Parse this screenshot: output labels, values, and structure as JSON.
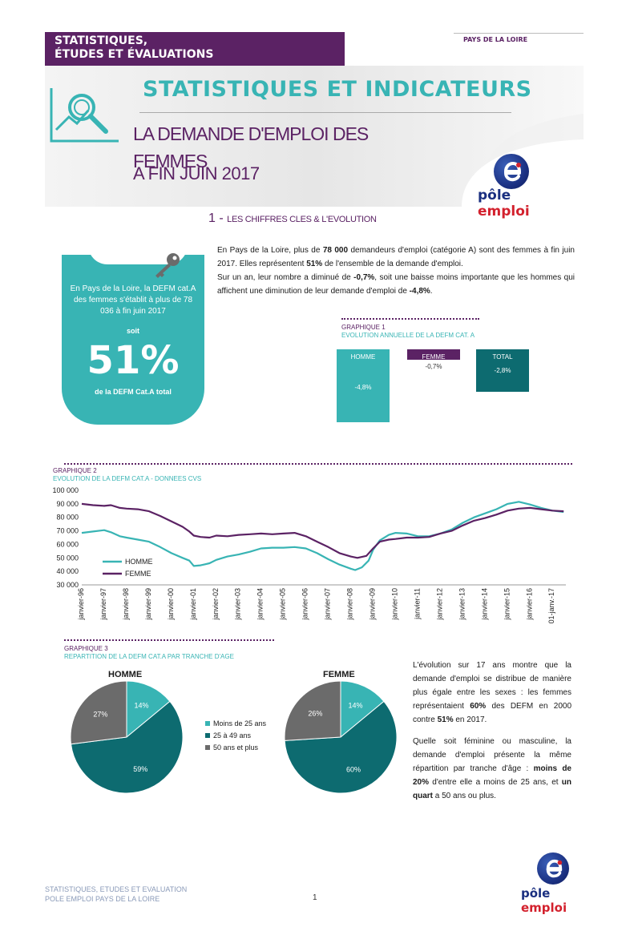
{
  "header": {
    "banner_line1": "STATISTIQUES,",
    "banner_line2": "ÉTUDES ET ÉVALUATIONS",
    "region": "PAYS DE LA LOIRE",
    "section_title": "STATISTIQUES ET INDICATEURS",
    "title_line1": "LA DEMANDE D'EMPLOI DES",
    "title_line2": "FEMMES",
    "subtitle": "A FIN JUIN 2017",
    "logo_part1": "pôle",
    "logo_part2": "emploi"
  },
  "section1": {
    "number": "1 -",
    "title": "LES CHIFFRES CLES & L'EVOLUTION",
    "intro_p1_a": "En Pays de la Loire, plus de ",
    "intro_p1_b": "78 000",
    "intro_p1_c": " demandeurs d'emploi (catégorie A) sont des femmes à fin juin 2017. Elles représentent ",
    "intro_p1_d": "51%",
    "intro_p1_e": " de l'ensemble de la demande d'emploi.",
    "intro_p2_a": "Sur un an, leur nombre a diminué de ",
    "intro_p2_b": "-0,7%",
    "intro_p2_c": ", soit une baisse moins importante que les hommes qui affichent une diminution de leur demande d'emploi de ",
    "intro_p2_d": "-4,8%",
    "intro_p2_e": "."
  },
  "kpi": {
    "text": "En Pays de la Loire, la DEFM cat.A des femmes s'établit à plus de 78 036 à fin juin 2017",
    "soit": "soit",
    "value": "51%",
    "caption": "de la DEFM Cat.A total"
  },
  "graph1": {
    "label": "GRAPHIQUE 1",
    "title": "EVOLUTION ANNUELLE DE LA DEFM CAT. A",
    "bars": [
      {
        "name": "HOMME",
        "value": "-4,8%",
        "color": "#38b4b4"
      },
      {
        "name": "FEMME",
        "value": "-0,7%",
        "color": "#5b2264"
      },
      {
        "name": "TOTAL",
        "value": "-2,8%",
        "color": "#0d6b70"
      }
    ]
  },
  "graph2": {
    "label": "GRAPHIQUE 2",
    "title": "EVOLUTION DE LA DEFM CAT.A - DONNEES CVS"
  },
  "chart_data": [
    {
      "type": "bar",
      "categories": [
        "HOMME",
        "FEMME",
        "TOTAL"
      ],
      "values": [
        -4.8,
        -0.7,
        -2.8
      ]
    },
    {
      "type": "line",
      "ylim": [
        30000,
        100000
      ],
      "yticks": [
        "100 000",
        "90 000",
        "80 000",
        "70 000",
        "60 000",
        "50 000",
        "40 000",
        "30 000"
      ],
      "xticks": [
        "janvier-96",
        "janvier-97",
        "janvier-98",
        "janvier-99",
        "janvier-00",
        "janvier-01",
        "janvier-02",
        "janvier-03",
        "janvier-04",
        "janvier-05",
        "janvier-06",
        "janvier-07",
        "janvier-08",
        "janvier-09",
        "janvier-10",
        "janvier-11",
        "janvier-12",
        "janvier-13",
        "janvier-14",
        "janvier-15",
        "janvier-16",
        "01-janv.-17"
      ],
      "series": [
        {
          "name": "HOMME",
          "color": "#38b4b4",
          "points": [
            [
              1996.0,
              68500
            ],
            [
              1996.5,
              69500
            ],
            [
              1997.0,
              70500
            ],
            [
              1997.3,
              69000
            ],
            [
              1997.7,
              66000
            ],
            [
              1998.0,
              65000
            ],
            [
              1998.5,
              63500
            ],
            [
              1999.0,
              62000
            ],
            [
              1999.5,
              58000
            ],
            [
              2000.0,
              53500
            ],
            [
              2000.5,
              50000
            ],
            [
              2000.8,
              48000
            ],
            [
              2001.0,
              44000
            ],
            [
              2001.3,
              44500
            ],
            [
              2001.7,
              46000
            ],
            [
              2002.0,
              48500
            ],
            [
              2002.5,
              51000
            ],
            [
              2003.0,
              52500
            ],
            [
              2003.5,
              54500
            ],
            [
              2004.0,
              57000
            ],
            [
              2004.5,
              57500
            ],
            [
              2005.0,
              57500
            ],
            [
              2005.5,
              58000
            ],
            [
              2006.0,
              57000
            ],
            [
              2006.5,
              53500
            ],
            [
              2007.0,
              49000
            ],
            [
              2007.5,
              45000
            ],
            [
              2008.0,
              42000
            ],
            [
              2008.2,
              41000
            ],
            [
              2008.5,
              43000
            ],
            [
              2008.8,
              48000
            ],
            [
              2009.0,
              56000
            ],
            [
              2009.3,
              63000
            ],
            [
              2009.7,
              67000
            ],
            [
              2010.0,
              68500
            ],
            [
              2010.5,
              68000
            ],
            [
              2011.0,
              66000
            ],
            [
              2011.5,
              66000
            ],
            [
              2012.0,
              68000
            ],
            [
              2012.5,
              71000
            ],
            [
              2013.0,
              76000
            ],
            [
              2013.5,
              80000
            ],
            [
              2014.0,
              83000
            ],
            [
              2014.5,
              86000
            ],
            [
              2015.0,
              90000
            ],
            [
              2015.5,
              91500
            ],
            [
              2016.0,
              89500
            ],
            [
              2016.5,
              87000
            ],
            [
              2017.0,
              85000
            ],
            [
              2017.5,
              84000
            ]
          ]
        },
        {
          "name": "FEMME",
          "color": "#5b2264",
          "points": [
            [
              1996.0,
              90000
            ],
            [
              1996.5,
              89000
            ],
            [
              1997.0,
              88500
            ],
            [
              1997.3,
              89000
            ],
            [
              1997.7,
              87000
            ],
            [
              1998.0,
              86500
            ],
            [
              1998.5,
              86000
            ],
            [
              1999.0,
              84500
            ],
            [
              1999.5,
              81000
            ],
            [
              2000.0,
              77000
            ],
            [
              2000.5,
              73000
            ],
            [
              2000.8,
              69500
            ],
            [
              2001.0,
              66500
            ],
            [
              2001.3,
              65500
            ],
            [
              2001.7,
              65000
            ],
            [
              2002.0,
              66500
            ],
            [
              2002.5,
              66000
            ],
            [
              2003.0,
              67000
            ],
            [
              2003.5,
              67500
            ],
            [
              2004.0,
              68000
            ],
            [
              2004.5,
              67500
            ],
            [
              2005.0,
              68000
            ],
            [
              2005.5,
              68500
            ],
            [
              2006.0,
              66000
            ],
            [
              2006.5,
              62000
            ],
            [
              2007.0,
              58000
            ],
            [
              2007.5,
              53500
            ],
            [
              2008.0,
              51000
            ],
            [
              2008.3,
              50000
            ],
            [
              2008.7,
              51500
            ],
            [
              2009.0,
              57000
            ],
            [
              2009.3,
              62000
            ],
            [
              2009.7,
              63500
            ],
            [
              2010.0,
              64000
            ],
            [
              2010.5,
              65000
            ],
            [
              2011.0,
              65000
            ],
            [
              2011.5,
              65500
            ],
            [
              2012.0,
              68000
            ],
            [
              2012.5,
              70000
            ],
            [
              2013.0,
              74000
            ],
            [
              2013.5,
              77500
            ],
            [
              2014.0,
              79500
            ],
            [
              2014.5,
              82000
            ],
            [
              2015.0,
              85000
            ],
            [
              2015.5,
              86500
            ],
            [
              2016.0,
              87000
            ],
            [
              2016.5,
              86000
            ],
            [
              2017.0,
              85000
            ],
            [
              2017.5,
              84500
            ]
          ]
        }
      ]
    },
    {
      "type": "pie",
      "title": "HOMME",
      "categories": [
        "Moins de 25 ans",
        "25 à 49 ans",
        "50 ans et plus"
      ],
      "values": [
        14,
        59,
        27
      ]
    },
    {
      "type": "pie",
      "title": "FEMME",
      "categories": [
        "Moins de 25 ans",
        "25 à 49 ans",
        "50 ans et plus"
      ],
      "values": [
        14,
        60,
        26
      ]
    }
  ],
  "graph3": {
    "label": "GRAPHIQUE 3",
    "title": "REPARTITION DE LA DEFM CAT.A PAR TRANCHE D'AGE",
    "pie1_title": "HOMME",
    "pie2_title": "FEMME",
    "legend": [
      {
        "label": "Moins de 25 ans",
        "color": "#38b4b4"
      },
      {
        "label": "25 à 49 ans",
        "color": "#0d6b70"
      },
      {
        "label": "50 ans et plus",
        "color": "#6b6b6b"
      }
    ],
    "slice_colors": [
      "#38b4b4",
      "#0d6b70",
      "#6b6b6b"
    ]
  },
  "conclusion": {
    "p1_a": "L'évolution sur 17 ans montre que la demande d'emploi se distribue de manière plus égale entre les sexes : les femmes représentaient ",
    "p1_b": "60%",
    "p1_c": " des DEFM en 2000 contre ",
    "p1_d": "51%",
    "p1_e": " en 2017.",
    "p2_a": "Quelle soit féminine ou masculine, la demande d'emploi présente la même répartition par tranche d'âge : ",
    "p2_b": "moins de 20%",
    "p2_c": " d'entre elle a moins de 25 ans, et ",
    "p2_d": "un quart",
    "p2_e": " a 50 ans ou plus."
  },
  "footer": {
    "line1": "STATISTIQUES, ETUDES ET EVALUATION",
    "line2": "POLE EMPLOI PAYS DE LA LOIRE",
    "page": "1"
  }
}
